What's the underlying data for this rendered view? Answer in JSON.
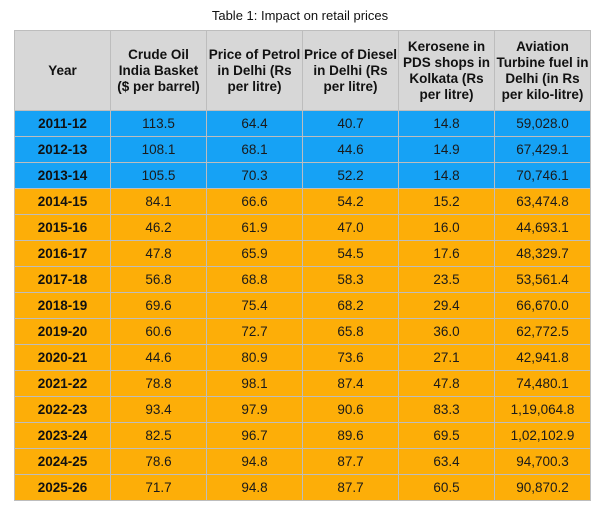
{
  "caption": "Table 1: Impact on retail prices",
  "colors": {
    "header": "#d7d7d7",
    "highlight_blue": "#16a2f5",
    "highlight_orange": "#fdae08"
  },
  "headers": [
    "Year",
    "Crude Oil India Basket ($ per barrel)",
    "Price of Petrol in Delhi (Rs per litre)",
    "Price of Diesel in Delhi (Rs per litre)",
    "Kerosene in PDS shops in Kolkata (Rs per litre)",
    "Aviation Turbine fuel in Delhi (in Rs per kilo-litre)"
  ],
  "rows": [
    {
      "group": "blue",
      "cells": [
        "2011-12",
        "113.5",
        "64.4",
        "40.7",
        "14.8",
        "59,028.0"
      ]
    },
    {
      "group": "blue",
      "cells": [
        "2012-13",
        "108.1",
        "68.1",
        "44.6",
        "14.9",
        "67,429.1"
      ]
    },
    {
      "group": "blue",
      "cells": [
        "2013-14",
        "105.5",
        "70.3",
        "52.2",
        "14.8",
        "70,746.1"
      ]
    },
    {
      "group": "orange",
      "cells": [
        "2014-15",
        "84.1",
        "66.6",
        "54.2",
        "15.2",
        "63,474.8"
      ]
    },
    {
      "group": "orange",
      "cells": [
        "2015-16",
        "46.2",
        "61.9",
        "47.0",
        "16.0",
        "44,693.1"
      ]
    },
    {
      "group": "orange",
      "cells": [
        "2016-17",
        "47.8",
        "65.9",
        "54.5",
        "17.6",
        "48,329.7"
      ]
    },
    {
      "group": "orange",
      "cells": [
        "2017-18",
        "56.8",
        "68.8",
        "58.3",
        "23.5",
        "53,561.4"
      ]
    },
    {
      "group": "orange",
      "cells": [
        "2018-19",
        "69.6",
        "75.4",
        "68.2",
        "29.4",
        "66,670.0"
      ]
    },
    {
      "group": "orange",
      "cells": [
        "2019-20",
        "60.6",
        "72.7",
        "65.8",
        "36.0",
        "62,772.5"
      ]
    },
    {
      "group": "orange",
      "cells": [
        "2020-21",
        "44.6",
        "80.9",
        "73.6",
        "27.1",
        "42,941.8"
      ]
    },
    {
      "group": "orange",
      "cells": [
        "2021-22",
        "78.8",
        "98.1",
        "87.4",
        "47.8",
        "74,480.1"
      ]
    },
    {
      "group": "orange",
      "cells": [
        "2022-23",
        "93.4",
        "97.9",
        "90.6",
        "83.3",
        "1,19,064.8"
      ]
    },
    {
      "group": "orange",
      "cells": [
        "2023-24",
        "82.5",
        "96.7",
        "89.6",
        "69.5",
        "1,02,102.9"
      ]
    },
    {
      "group": "orange",
      "cells": [
        "2024-25",
        "78.6",
        "94.8",
        "87.7",
        "63.4",
        "94,700.3"
      ]
    },
    {
      "group": "orange",
      "cells": [
        "2025-26",
        "71.7",
        "94.8",
        "87.7",
        "60.5",
        "90,870.2"
      ]
    }
  ]
}
